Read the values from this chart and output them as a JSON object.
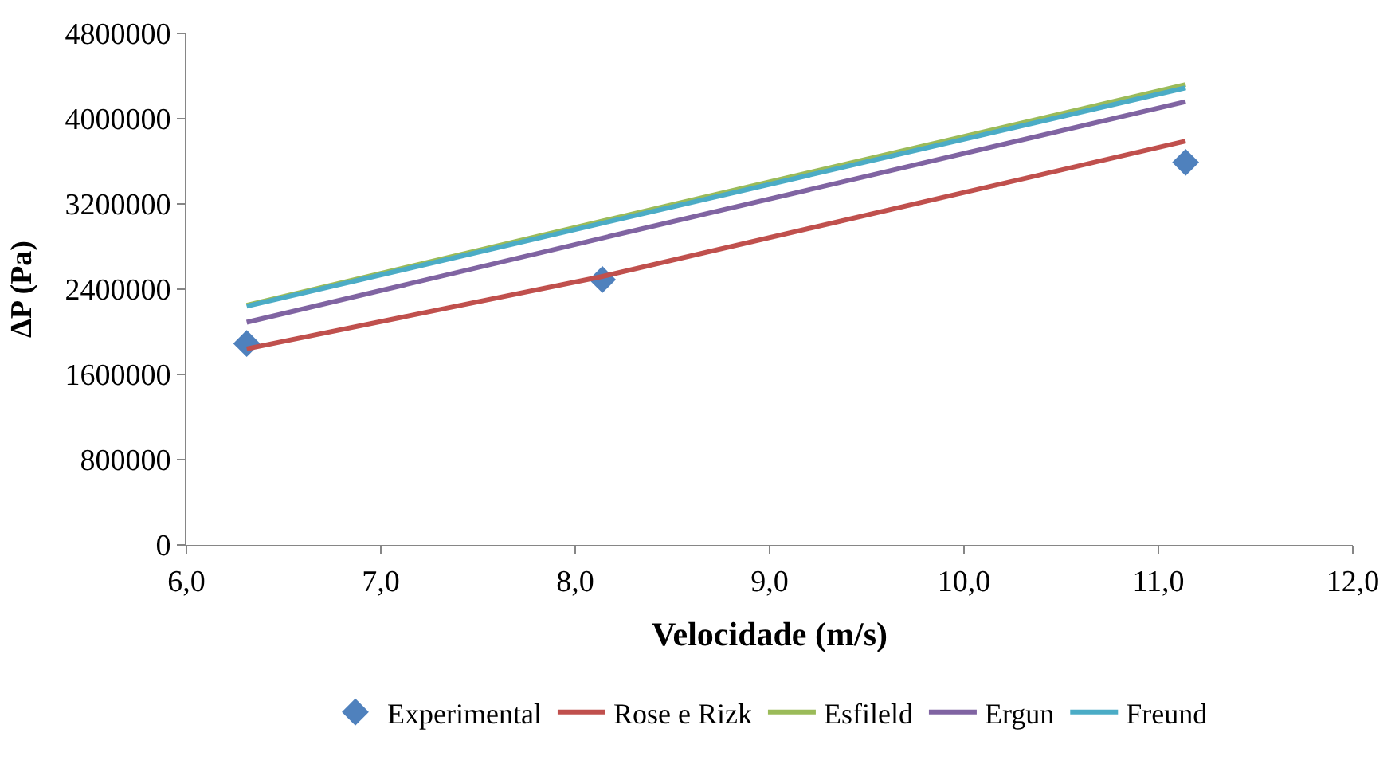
{
  "chart_data": {
    "type": "line",
    "xlabel": "Velocidade (m/s)",
    "ylabel": "ΔP (Pa)",
    "x": [
      6.31,
      8.14,
      11.14
    ],
    "series": [
      {
        "name": "Experimental",
        "type": "scatter",
        "marker": "diamond",
        "color": "#4f81bd",
        "values": [
          1890000,
          2490000,
          3590000
        ]
      },
      {
        "name": "Rose e Rizk",
        "color": "#c0504d",
        "values": [
          1840000,
          2520000,
          3790000
        ]
      },
      {
        "name": "Esfileld",
        "color": "#9bbb59",
        "values": [
          2250000,
          3040000,
          4320000
        ]
      },
      {
        "name": "Ergun",
        "color": "#8064a2",
        "values": [
          2090000,
          2880000,
          4160000
        ]
      },
      {
        "name": "Freund",
        "color": "#4bacc6",
        "values": [
          2240000,
          3020000,
          4290000
        ]
      }
    ],
    "xlim": [
      6.0,
      12.0
    ],
    "xticks": [
      {
        "value": 6,
        "label": "6,0"
      },
      {
        "value": 7,
        "label": "7,0"
      },
      {
        "value": 8,
        "label": "8,0"
      },
      {
        "value": 9,
        "label": "9,0"
      },
      {
        "value": 10,
        "label": "10,0"
      },
      {
        "value": 11,
        "label": "11,0"
      },
      {
        "value": 12,
        "label": "12,0"
      }
    ],
    "ylim": [
      0,
      4800000
    ],
    "yticks": [
      0,
      800000,
      1600000,
      2400000,
      3200000,
      4000000,
      4800000
    ],
    "legend": "bottom"
  }
}
